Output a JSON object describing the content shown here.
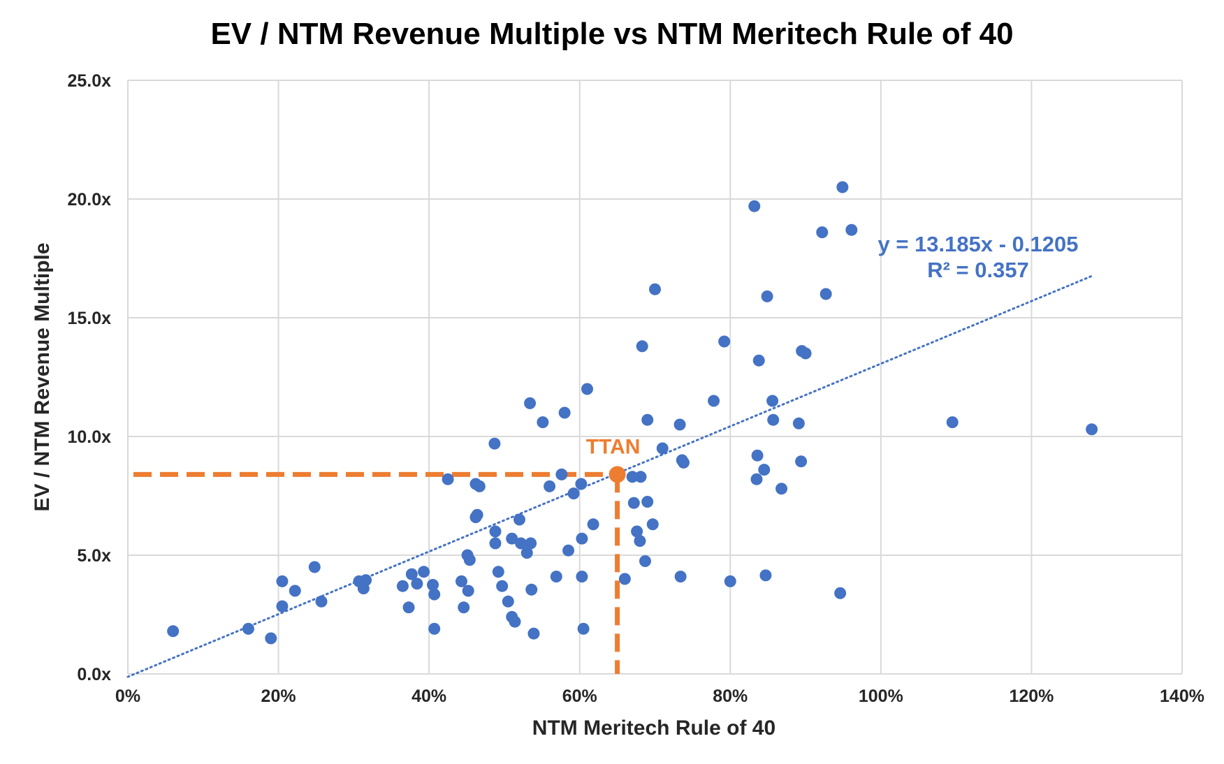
{
  "chart_data": {
    "type": "scatter",
    "title": "EV / NTM Revenue Multiple vs NTM Meritech Rule of 40",
    "xlabel": "NTM Meritech Rule of 40",
    "ylabel": "EV / NTM Revenue Multiple",
    "xlim": [
      0,
      1.4
    ],
    "ylim": [
      0,
      25
    ],
    "x_ticks": [
      0,
      0.2,
      0.4,
      0.6,
      0.8,
      1.0,
      1.2,
      1.4
    ],
    "x_tick_labels": [
      "0%",
      "20%",
      "40%",
      "60%",
      "80%",
      "100%",
      "120%",
      "140%"
    ],
    "y_ticks": [
      0,
      5,
      10,
      15,
      20,
      25
    ],
    "y_tick_labels": [
      "0.0x",
      "5.0x",
      "10.0x",
      "15.0x",
      "20.0x",
      "25.0x"
    ],
    "grid": true,
    "point_color": "#4472c4",
    "points": [
      [
        0.06,
        1.8
      ],
      [
        0.16,
        1.9
      ],
      [
        0.19,
        1.5
      ],
      [
        0.205,
        3.9
      ],
      [
        0.205,
        2.85
      ],
      [
        0.222,
        3.5
      ],
      [
        0.248,
        4.5
      ],
      [
        0.257,
        3.05
      ],
      [
        0.307,
        3.9
      ],
      [
        0.313,
        3.6
      ],
      [
        0.316,
        3.95
      ],
      [
        0.365,
        3.7
      ],
      [
        0.373,
        2.8
      ],
      [
        0.377,
        4.2
      ],
      [
        0.384,
        3.8
      ],
      [
        0.393,
        4.3
      ],
      [
        0.405,
        3.75
      ],
      [
        0.407,
        3.35
      ],
      [
        0.407,
        1.9
      ],
      [
        0.425,
        8.2
      ],
      [
        0.443,
        3.9
      ],
      [
        0.446,
        2.8
      ],
      [
        0.451,
        5.0
      ],
      [
        0.452,
        3.5
      ],
      [
        0.454,
        4.8
      ],
      [
        0.462,
        6.6
      ],
      [
        0.462,
        8.0
      ],
      [
        0.464,
        6.7
      ],
      [
        0.467,
        7.9
      ],
      [
        0.487,
        9.7
      ],
      [
        0.488,
        6.0
      ],
      [
        0.488,
        5.5
      ],
      [
        0.492,
        4.3
      ],
      [
        0.497,
        3.7
      ],
      [
        0.505,
        3.05
      ],
      [
        0.51,
        5.7
      ],
      [
        0.51,
        2.4
      ],
      [
        0.514,
        2.2
      ],
      [
        0.52,
        6.5
      ],
      [
        0.522,
        5.5
      ],
      [
        0.53,
        5.1
      ],
      [
        0.534,
        11.4
      ],
      [
        0.535,
        5.5
      ],
      [
        0.536,
        3.55
      ],
      [
        0.539,
        1.7
      ],
      [
        0.551,
        10.6
      ],
      [
        0.56,
        7.9
      ],
      [
        0.569,
        4.1
      ],
      [
        0.576,
        8.4
      ],
      [
        0.58,
        11.0
      ],
      [
        0.585,
        5.2
      ],
      [
        0.592,
        7.6
      ],
      [
        0.602,
        8.0
      ],
      [
        0.603,
        5.7
      ],
      [
        0.603,
        4.1
      ],
      [
        0.605,
        1.9
      ],
      [
        0.61,
        12.0
      ],
      [
        0.618,
        6.3
      ],
      [
        0.66,
        4.0
      ],
      [
        0.67,
        8.3
      ],
      [
        0.672,
        7.2
      ],
      [
        0.676,
        6.0
      ],
      [
        0.68,
        5.6
      ],
      [
        0.681,
        8.3
      ],
      [
        0.683,
        13.8
      ],
      [
        0.687,
        4.75
      ],
      [
        0.69,
        10.7
      ],
      [
        0.69,
        7.25
      ],
      [
        0.697,
        6.3
      ],
      [
        0.7,
        16.2
      ],
      [
        0.71,
        9.5
      ],
      [
        0.733,
        10.5
      ],
      [
        0.734,
        4.1
      ],
      [
        0.736,
        9.0
      ],
      [
        0.738,
        8.9
      ],
      [
        0.778,
        11.5
      ],
      [
        0.792,
        14.0
      ],
      [
        0.8,
        3.9
      ],
      [
        0.832,
        19.7
      ],
      [
        0.835,
        8.2
      ],
      [
        0.836,
        9.2
      ],
      [
        0.838,
        13.2
      ],
      [
        0.845,
        8.6
      ],
      [
        0.847,
        4.15
      ],
      [
        0.849,
        15.9
      ],
      [
        0.856,
        11.5
      ],
      [
        0.857,
        10.7
      ],
      [
        0.868,
        7.8
      ],
      [
        0.891,
        10.55
      ],
      [
        0.894,
        8.95
      ],
      [
        0.895,
        13.6
      ],
      [
        0.9,
        13.5
      ],
      [
        0.922,
        18.6
      ],
      [
        0.927,
        16.0
      ],
      [
        0.946,
        3.4
      ],
      [
        0.949,
        20.5
      ],
      [
        0.961,
        18.7
      ],
      [
        1.095,
        10.6
      ],
      [
        1.28,
        10.3
      ]
    ],
    "highlight": {
      "label": "TTAN",
      "x": 0.65,
      "y": 8.4,
      "color": "#ed7d31"
    },
    "trendline": {
      "slope": 13.185,
      "intercept": -0.1205,
      "x_range": [
        0,
        1.28
      ],
      "equation_text": "y = 13.185x - 0.1205",
      "r2_text": "R² = 0.357",
      "color": "#4472c4"
    }
  }
}
